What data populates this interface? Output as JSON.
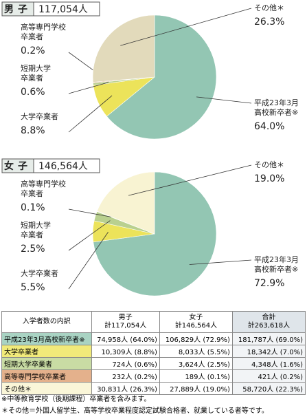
{
  "chart_data": [
    {
      "type": "pie",
      "title": "男子",
      "subtitle": "117,054人",
      "categories": [
        [
          "平成23年3月",
          "高校新卒者※"
        ],
        [
          "大学卒業者"
        ],
        [
          "短期大学",
          "卒業者"
        ],
        [
          "高等専門学校",
          "卒業者"
        ],
        [
          "その他＊"
        ]
      ],
      "values": [
        64.0,
        8.8,
        0.6,
        0.2,
        26.3
      ],
      "value_labels": [
        "64.0%",
        "8.8%",
        "0.6%",
        "0.2%",
        "26.3%"
      ],
      "colors": [
        "#93c6b3",
        "#ece35a",
        "#b9d08f",
        "#d99b6c",
        "#e2dabb"
      ]
    },
    {
      "type": "pie",
      "title": "女子",
      "subtitle": "146,564人",
      "categories": [
        [
          "平成23年3月",
          "高校新卒者※"
        ],
        [
          "大学卒業者"
        ],
        [
          "短期大学",
          "卒業者"
        ],
        [
          "高等専門学校",
          "卒業者"
        ],
        [
          "その他＊"
        ]
      ],
      "values": [
        72.9,
        5.5,
        2.5,
        0.1,
        19.0
      ],
      "value_labels": [
        "72.9%",
        "5.5%",
        "2.5%",
        "0.1%",
        "19.0%"
      ],
      "colors": [
        "#93c6b3",
        "#ece35a",
        "#b9d08f",
        "#d99b6c",
        "#f8f3d2"
      ]
    }
  ],
  "table": {
    "header": [
      "入学者数の内訳",
      [
        "男子",
        "計117,054人"
      ],
      [
        "女子",
        "計146,564人"
      ],
      [
        "合計",
        "計263,618人"
      ]
    ],
    "rows": [
      [
        "平成23年3月高校新卒者※",
        "74,958人 (64.0%)",
        "106,829人 (72.9%)",
        "181,787人 (69.0%)"
      ],
      [
        "大学卒業者",
        "10,309人 (8.8%)",
        "8,033人 (5.5%)",
        "18,342人 (7.0%)"
      ],
      [
        "短期大学卒業者",
        "724人 (0.6%)",
        "3,624人 (2.5%)",
        "4,348人 (1.6%)"
      ],
      [
        "高等専門学校卒業者",
        "232人 (0.2%)",
        "189人 (0.1%)",
        "421人 (0.2%)"
      ],
      [
        "その他＊",
        "30,831人 (26.3%)",
        "27,889人 (19.0%)",
        "58,720人 (22.3%)"
      ]
    ],
    "row_colors": [
      "#a9d3c3",
      "#f1ea7a",
      "#c9dca4",
      "#e4b18c",
      "#faf6d8"
    ]
  },
  "notes": [
    "※中等教育学校（後期課程）卒業者を含みます。",
    "＊その他＝外国人留学生、高等学校卒業程度認定試験合格者、就業している者等です。"
  ]
}
